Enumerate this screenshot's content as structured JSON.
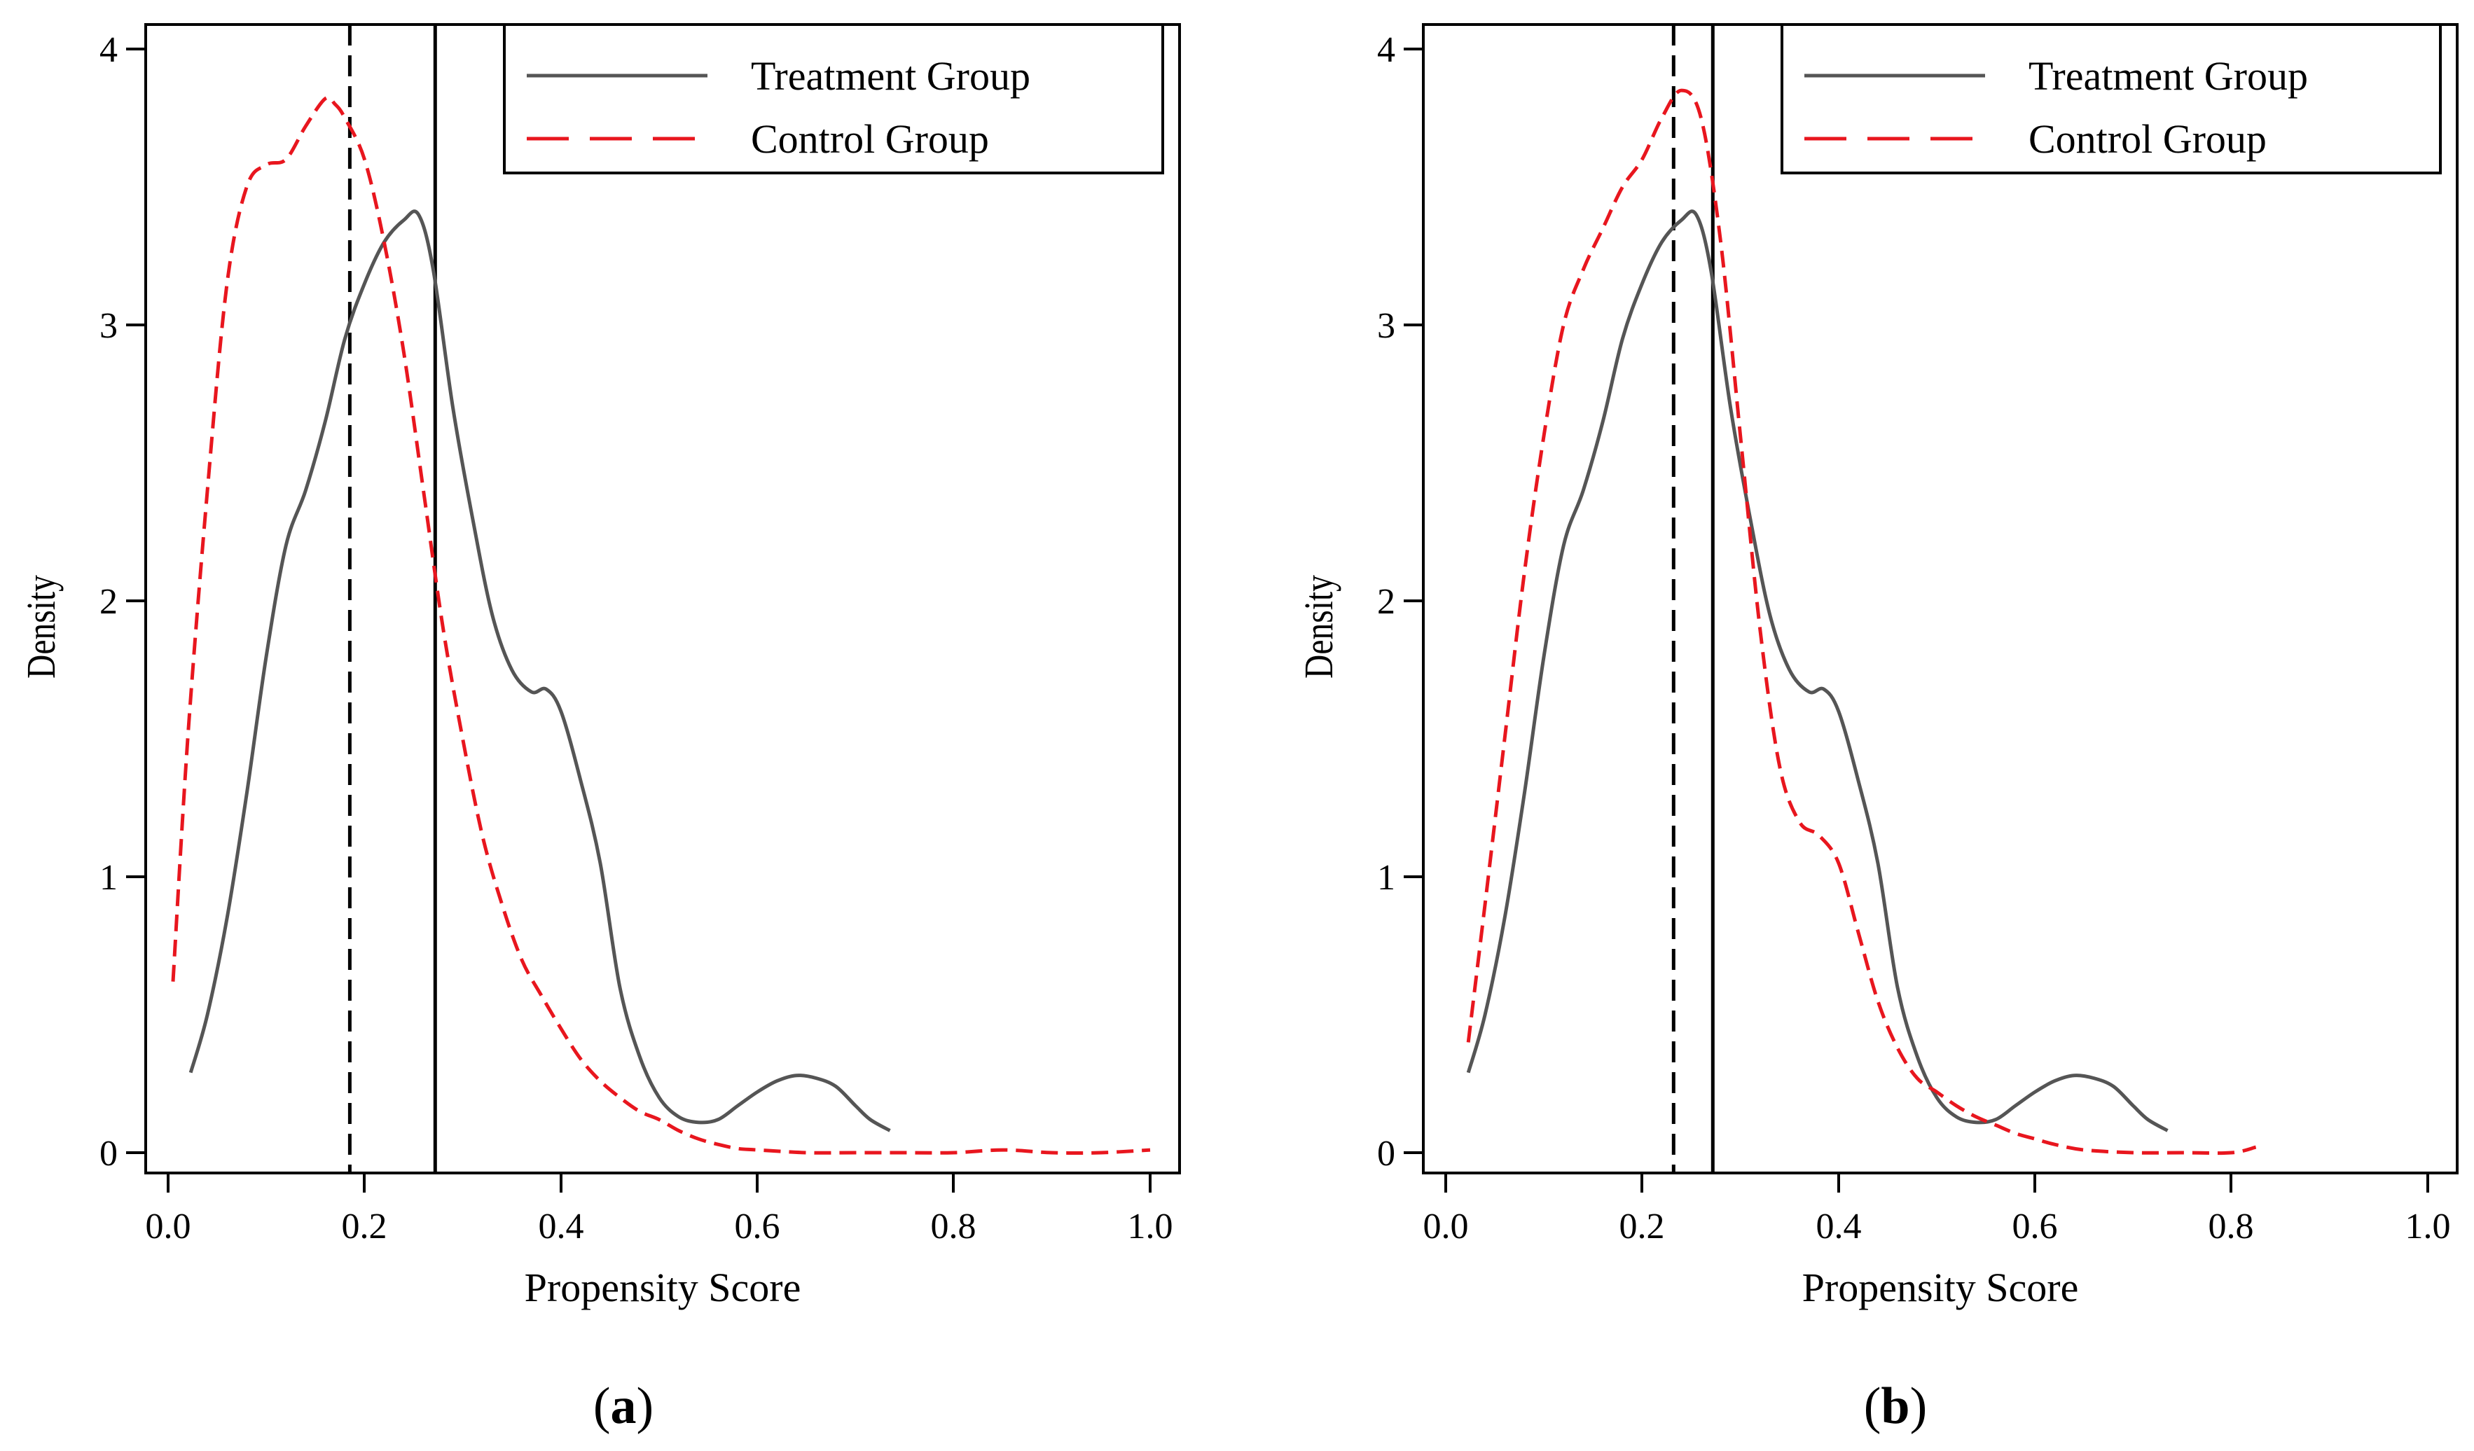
{
  "colors": {
    "treatment": "#555555",
    "control": "#e8161e",
    "frame": "#000000"
  },
  "chart_data": [
    {
      "id": "a",
      "type": "line",
      "caption": "a",
      "xlabel": "Propensity Score",
      "ylabel": "Density",
      "xlim": [
        -0.02,
        1.03
      ],
      "ylim": [
        -0.08,
        4.1
      ],
      "xticks": [
        0.0,
        0.2,
        0.4,
        0.6,
        0.8,
        1.0
      ],
      "xtick_labels": [
        "0.0",
        "0.2",
        "0.4",
        "0.6",
        "0.8",
        "1.0"
      ],
      "yticks": [
        0,
        1,
        2,
        3,
        4
      ],
      "ytick_labels": [
        "0",
        "1",
        "2",
        "3",
        "4"
      ],
      "legend_position": "top-right",
      "vlines": [
        {
          "name": "control-mean",
          "x": 0.185,
          "style": "dashed"
        },
        {
          "name": "treatment-mean",
          "x": 0.272,
          "style": "solid"
        }
      ],
      "series": [
        {
          "name": "Treatment Group",
          "style": "solid",
          "x": [
            0.023,
            0.04,
            0.06,
            0.08,
            0.1,
            0.12,
            0.14,
            0.16,
            0.18,
            0.2,
            0.22,
            0.24,
            0.255,
            0.27,
            0.29,
            0.31,
            0.33,
            0.35,
            0.37,
            0.385,
            0.4,
            0.42,
            0.44,
            0.46,
            0.48,
            0.5,
            0.52,
            0.54,
            0.56,
            0.58,
            0.6,
            0.62,
            0.64,
            0.66,
            0.68,
            0.7,
            0.715,
            0.735
          ],
          "y": [
            0.29,
            0.5,
            0.85,
            1.3,
            1.8,
            2.2,
            2.4,
            2.65,
            2.95,
            3.15,
            3.3,
            3.38,
            3.4,
            3.2,
            2.7,
            2.3,
            1.95,
            1.75,
            1.67,
            1.68,
            1.6,
            1.35,
            1.05,
            0.6,
            0.35,
            0.2,
            0.13,
            0.11,
            0.12,
            0.17,
            0.22,
            0.26,
            0.28,
            0.27,
            0.24,
            0.17,
            0.12,
            0.08
          ]
        },
        {
          "name": "Control Group",
          "style": "dashed",
          "x": [
            0.005,
            0.02,
            0.04,
            0.06,
            0.08,
            0.1,
            0.12,
            0.14,
            0.16,
            0.17,
            0.18,
            0.2,
            0.22,
            0.24,
            0.26,
            0.28,
            0.3,
            0.32,
            0.34,
            0.36,
            0.38,
            0.4,
            0.42,
            0.44,
            0.46,
            0.48,
            0.5,
            0.52,
            0.54,
            0.56,
            0.58,
            0.6,
            0.65,
            0.7,
            0.75,
            0.8,
            0.85,
            0.9,
            0.95,
            1.0
          ],
          "y": [
            0.62,
            1.5,
            2.4,
            3.15,
            3.5,
            3.58,
            3.6,
            3.72,
            3.82,
            3.8,
            3.75,
            3.6,
            3.3,
            2.9,
            2.4,
            1.9,
            1.5,
            1.15,
            0.9,
            0.7,
            0.57,
            0.45,
            0.34,
            0.26,
            0.2,
            0.15,
            0.12,
            0.08,
            0.05,
            0.03,
            0.015,
            0.01,
            0.0,
            0.0,
            0.0,
            0.0,
            0.01,
            0.0,
            0.0,
            0.01
          ]
        }
      ]
    },
    {
      "id": "b",
      "type": "line",
      "caption": "b",
      "xlabel": "Propensity Score",
      "ylabel": "Density",
      "xlim": [
        -0.02,
        1.03
      ],
      "ylim": [
        -0.08,
        4.1
      ],
      "xticks": [
        0.0,
        0.2,
        0.4,
        0.6,
        0.8,
        1.0
      ],
      "xtick_labels": [
        "0.0",
        "0.2",
        "0.4",
        "0.6",
        "0.8",
        "1.0"
      ],
      "yticks": [
        0,
        1,
        2,
        3,
        4
      ],
      "ytick_labels": [
        "0",
        "1",
        "2",
        "3",
        "4"
      ],
      "legend_position": "top-right",
      "vlines": [
        {
          "name": "control-mean",
          "x": 0.232,
          "style": "dashed"
        },
        {
          "name": "treatment-mean",
          "x": 0.272,
          "style": "solid"
        }
      ],
      "series": [
        {
          "name": "Treatment Group",
          "style": "solid",
          "x": [
            0.023,
            0.04,
            0.06,
            0.08,
            0.1,
            0.12,
            0.14,
            0.16,
            0.18,
            0.2,
            0.22,
            0.24,
            0.255,
            0.27,
            0.29,
            0.31,
            0.33,
            0.35,
            0.37,
            0.385,
            0.4,
            0.42,
            0.44,
            0.46,
            0.48,
            0.5,
            0.52,
            0.54,
            0.56,
            0.58,
            0.6,
            0.62,
            0.64,
            0.66,
            0.68,
            0.7,
            0.715,
            0.735
          ],
          "y": [
            0.29,
            0.5,
            0.85,
            1.3,
            1.8,
            2.2,
            2.4,
            2.65,
            2.95,
            3.15,
            3.3,
            3.38,
            3.4,
            3.2,
            2.7,
            2.3,
            1.95,
            1.75,
            1.67,
            1.68,
            1.6,
            1.35,
            1.05,
            0.6,
            0.35,
            0.2,
            0.13,
            0.11,
            0.12,
            0.17,
            0.22,
            0.26,
            0.28,
            0.27,
            0.24,
            0.17,
            0.12,
            0.08
          ]
        },
        {
          "name": "Control Group",
          "style": "dashed",
          "x": [
            0.023,
            0.04,
            0.06,
            0.08,
            0.1,
            0.12,
            0.14,
            0.16,
            0.18,
            0.2,
            0.22,
            0.24,
            0.26,
            0.28,
            0.3,
            0.32,
            0.34,
            0.36,
            0.38,
            0.4,
            0.42,
            0.44,
            0.46,
            0.48,
            0.5,
            0.52,
            0.54,
            0.56,
            0.58,
            0.6,
            0.62,
            0.65,
            0.7,
            0.75,
            0.8,
            0.825
          ],
          "y": [
            0.4,
            0.9,
            1.5,
            2.1,
            2.6,
            3.0,
            3.2,
            3.35,
            3.5,
            3.6,
            3.75,
            3.85,
            3.75,
            3.3,
            2.6,
            1.9,
            1.4,
            1.2,
            1.15,
            1.05,
            0.8,
            0.55,
            0.38,
            0.27,
            0.22,
            0.17,
            0.13,
            0.1,
            0.07,
            0.05,
            0.03,
            0.01,
            0.0,
            0.0,
            0.0,
            0.02
          ]
        }
      ]
    }
  ]
}
